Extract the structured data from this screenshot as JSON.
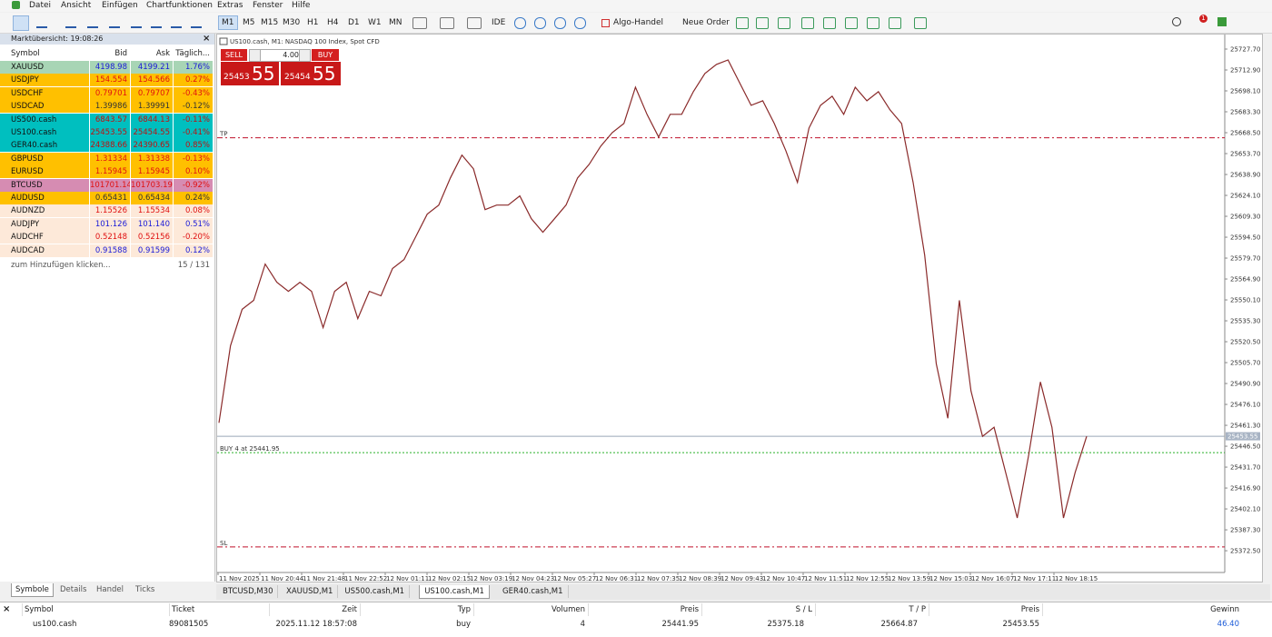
{
  "menu": [
    "Datei",
    "Ansicht",
    "Einfügen",
    "Chartfunktionen",
    "Extras",
    "Fenster",
    "Hilfe"
  ],
  "toolbar": {
    "timeframes": [
      "M1",
      "M5",
      "M15",
      "M30",
      "H1",
      "H4",
      "D1",
      "W1",
      "MN"
    ],
    "ide": "IDE",
    "algo": "Algo-Handel",
    "order": "Neue Order",
    "notifications": "1"
  },
  "market_watch": {
    "title": "Marktübersicht: 19:08:26",
    "columns": [
      "Symbol",
      "Bid",
      "Ask",
      "Täglich..."
    ],
    "rows": [
      {
        "symbol": "XAUUSD",
        "bid": "4198.98",
        "ask": "4199.21",
        "change": "1.76%",
        "color": "#a8d5b5",
        "text": "#1a1ad8"
      },
      {
        "symbol": "USDJPY",
        "bid": "154.554",
        "ask": "154.566",
        "change": "0.27%",
        "color": "#ffc000",
        "text": "#e01010"
      },
      {
        "symbol": "USDCHF",
        "bid": "0.79701",
        "ask": "0.79707",
        "change": "-0.43%",
        "color": "#ffc000",
        "text": "#e01010"
      },
      {
        "symbol": "USDCAD",
        "bid": "1.39986",
        "ask": "1.39991",
        "change": "-0.12%",
        "color": "#ffc000",
        "text": "#333333"
      },
      {
        "symbol": "US500.cash",
        "bid": "6843.57",
        "ask": "6844.13",
        "change": "-0.11%",
        "color": "#00bfbf",
        "text": "#c01010"
      },
      {
        "symbol": "US100.cash",
        "bid": "25453.55",
        "ask": "25454.55",
        "change": "-0.41%",
        "color": "#00bfbf",
        "text": "#c01010"
      },
      {
        "symbol": "GER40.cash",
        "bid": "24388.66",
        "ask": "24390.65",
        "change": "0.85%",
        "color": "#00bfbf",
        "text": "#c01010"
      },
      {
        "symbol": "GBPUSD",
        "bid": "1.31334",
        "ask": "1.31338",
        "change": "-0.13%",
        "color": "#ffc000",
        "text": "#e01010"
      },
      {
        "symbol": "EURUSD",
        "bid": "1.15945",
        "ask": "1.15945",
        "change": "0.10%",
        "color": "#ffc000",
        "text": "#e01010"
      },
      {
        "symbol": "BTCUSD",
        "bid": "101701.14",
        "ask": "101703.19",
        "change": "-0.92%",
        "color": "#d68cb2",
        "text": "#e01010"
      },
      {
        "symbol": "AUDUSD",
        "bid": "0.65431",
        "ask": "0.65434",
        "change": "0.24%",
        "color": "#ffc000",
        "text": "#333333"
      },
      {
        "symbol": "AUDNZD",
        "bid": "1.15526",
        "ask": "1.15534",
        "change": "0.08%",
        "color": "#fde9d9",
        "text": "#e01010"
      },
      {
        "symbol": "AUDJPY",
        "bid": "101.126",
        "ask": "101.140",
        "change": "0.51%",
        "color": "#fde9d9",
        "text": "#1a1ad8"
      },
      {
        "symbol": "AUDCHF",
        "bid": "0.52148",
        "ask": "0.52156",
        "change": "-0.20%",
        "color": "#fde9d9",
        "text": "#e01010"
      },
      {
        "symbol": "AUDCAD",
        "bid": "0.91588",
        "ask": "0.91599",
        "change": "0.12%",
        "color": "#fde9d9",
        "text": "#1a1ad8"
      }
    ],
    "add": "zum Hinzufügen klicken...",
    "count": "15 / 131",
    "tabs": [
      "Symbole",
      "Details",
      "Handel",
      "Ticks"
    ]
  },
  "trade_panel": {
    "sell": "SELL",
    "buy": "BUY",
    "volume": "4.00",
    "sell_price": "25453",
    "sell_big": "55",
    "buy_price": "25454",
    "buy_big": "55"
  },
  "chart_data": {
    "type": "line",
    "title": "US100.cash, M1:  NASDAQ 100 Index, Spot CFD",
    "series": [
      {
        "name": "US100.cash",
        "color": "#8a2a2a",
        "values": [
          25463.1,
          25517.7,
          25543.4,
          25549.8,
          25575.5,
          25562.6,
          25556.2,
          25562.6,
          25556.2,
          25530.5,
          25556.2,
          25562.6,
          25536.9,
          25556.2,
          25553.0,
          25572.3,
          25578.7,
          25594.8,
          25610.8,
          25617.2,
          25636.5,
          25652.6,
          25642.9,
          25614.0,
          25617.2,
          25617.2,
          25623.7,
          25607.6,
          25598.0,
          25607.6,
          25617.2,
          25636.5,
          25646.1,
          25659.0,
          25668.6,
          25675.0,
          25700.7,
          25681.5,
          25665.4,
          25681.5,
          25681.5,
          25697.5,
          25710.4,
          25716.8,
          25720.0,
          25703.9,
          25687.9,
          25691.1,
          25675.0,
          25655.8,
          25633.3,
          25671.8,
          25687.9,
          25694.3,
          25681.5,
          25700.7,
          25691.1,
          25697.5,
          25684.7,
          25675.0,
          25633.3,
          25581.9,
          25504.8,
          25466.3,
          25549.8,
          25485.6,
          25453.5,
          25459.9,
          25427.8,
          25395.7,
          25440.6,
          25492.0,
          25459.9,
          25395.7,
          25427.8,
          25453.5
        ]
      }
    ],
    "ylim": [
      25357.1,
      25738.0
    ],
    "yticks": [
      {
        "value": 25727.7,
        "label": "25727.70"
      },
      {
        "value": 25712.9,
        "label": "25712.90"
      },
      {
        "value": 25698.1,
        "label": "25698.10"
      },
      {
        "value": 25683.3,
        "label": "25683.30"
      },
      {
        "value": 25668.5,
        "label": "25668.50"
      },
      {
        "value": 25653.7,
        "label": "25653.70"
      },
      {
        "value": 25638.9,
        "label": "25638.90"
      },
      {
        "value": 25624.1,
        "label": "25624.10"
      },
      {
        "value": 25609.3,
        "label": "25609.30"
      },
      {
        "value": 25594.5,
        "label": "25594.50"
      },
      {
        "value": 25579.7,
        "label": "25579.70"
      },
      {
        "value": 25564.9,
        "label": "25564.90"
      },
      {
        "value": 25550.1,
        "label": "25550.10"
      },
      {
        "value": 25535.3,
        "label": "25535.30"
      },
      {
        "value": 25520.5,
        "label": "25520.50"
      },
      {
        "value": 25505.7,
        "label": "25505.70"
      },
      {
        "value": 25490.9,
        "label": "25490.90"
      },
      {
        "value": 25476.1,
        "label": "25476.10"
      },
      {
        "value": 25461.3,
        "label": "25461.30"
      },
      {
        "value": 25446.5,
        "label": "25446.50"
      },
      {
        "value": 25431.7,
        "label": "25431.70"
      },
      {
        "value": 25416.9,
        "label": "25416.90"
      },
      {
        "value": 25402.1,
        "label": "25402.10"
      },
      {
        "value": 25387.3,
        "label": "25387.30"
      },
      {
        "value": 25372.5,
        "label": "25372.50"
      }
    ],
    "time_labels": [
      "11 Nov 2025",
      "11 Nov 20:44",
      "11 Nov 21:48",
      "11 Nov 22:52",
      "12 Nov 01:11",
      "12 Nov 02:15",
      "12 Nov 03:19",
      "12 Nov 04:23",
      "12 Nov 05:27",
      "12 Nov 06:31",
      "12 Nov 07:35",
      "12 Nov 08:39",
      "12 Nov 09:43",
      "12 Nov 10:47",
      "12 Nov 11:51",
      "12 Nov 12:55",
      "12 Nov 13:59",
      "12 Nov 15:03",
      "12 Nov 16:07",
      "12 Nov 17:11",
      "12 Nov 18:15"
    ],
    "levels": [
      {
        "label": "TP",
        "value": 25664.87,
        "color": "#c0102a",
        "dash": "6 3 2 3"
      },
      {
        "label": "SL",
        "value": 25375.18,
        "color": "#c0102a",
        "dash": "6 3 2 3"
      },
      {
        "label": "BUY 4 at 25441.95",
        "value": 25441.95,
        "color": "#2ab02a",
        "dash": "2 2"
      }
    ],
    "last_price": 25453.55
  },
  "chart_tabs": [
    "BTCUSD,M30",
    "XAUUSD,M1",
    "US500.cash,M1",
    "US100.cash,M1",
    "GER40.cash,M1"
  ],
  "trades": {
    "columns": [
      "Symbol",
      "Ticket",
      "Zeit",
      "Typ",
      "Volumen",
      "Preis",
      "S / L",
      "T / P",
      "Preis",
      "Gewinn"
    ],
    "rows": [
      [
        "us100.cash",
        "89081505",
        "2025.11.12 18:57:08",
        "buy",
        "4",
        "25441.95",
        "25375.18",
        "25664.87",
        "25453.55",
        "46.40"
      ]
    ]
  }
}
